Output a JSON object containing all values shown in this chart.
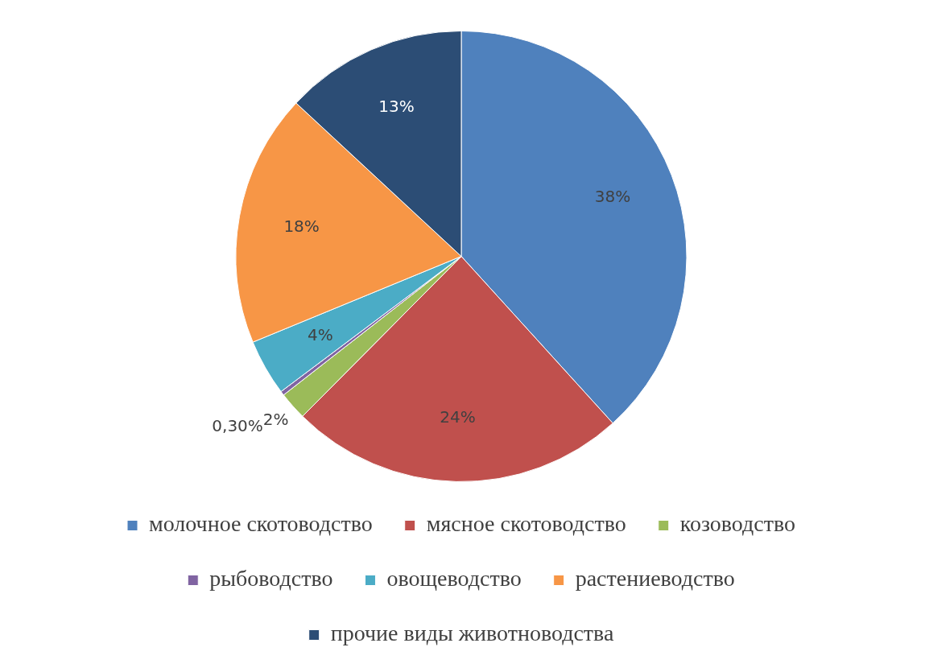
{
  "chart_data": {
    "type": "pie",
    "categories": [
      "молочное скотоводство",
      "мясное скотоводство",
      "козоводство",
      "рыбоводство",
      "овощеводство",
      "растениеводство",
      "прочие виды животноводства"
    ],
    "values": [
      38,
      24,
      2,
      0.3,
      4,
      18,
      13
    ],
    "value_labels": [
      "38%",
      "24%",
      "2%",
      "0,30%",
      "4%",
      "18%",
      "13%"
    ],
    "colors": [
      "#4f81bd",
      "#c0504d",
      "#9bbb59",
      "#8064a2",
      "#4bacc6",
      "#f79646",
      "#2c4d75"
    ],
    "legend": "bottom"
  }
}
